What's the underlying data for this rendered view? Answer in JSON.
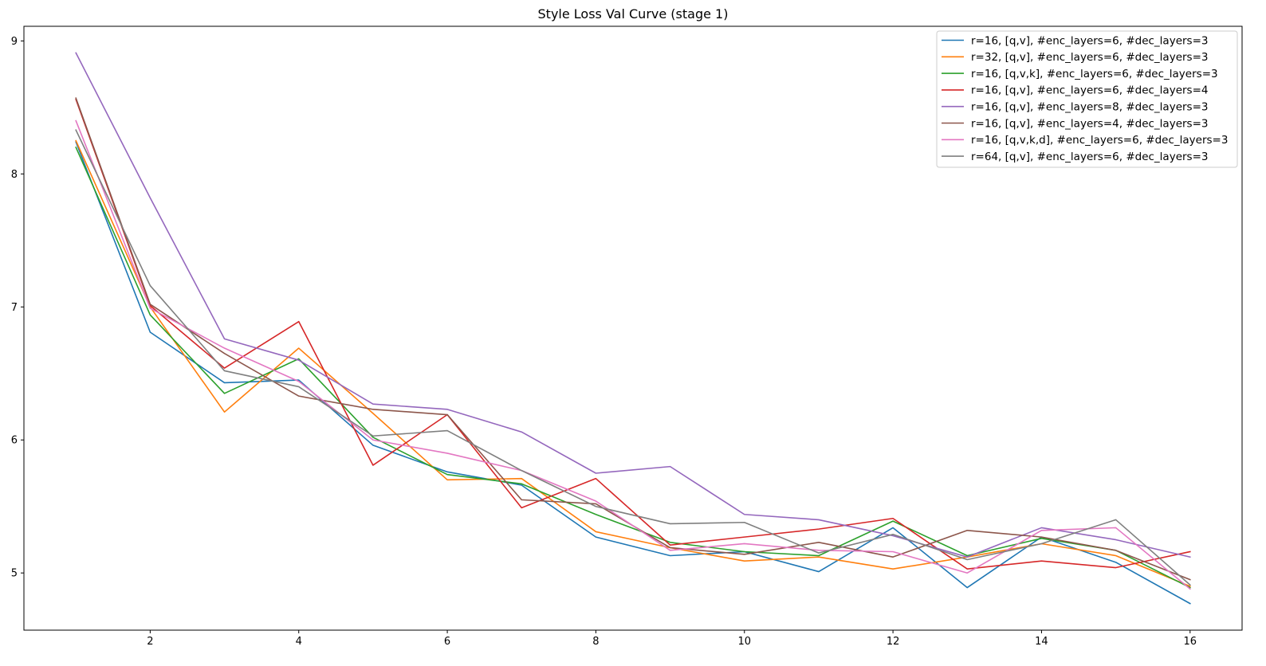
{
  "chart_data": {
    "type": "line",
    "title": "Style Loss Val Curve (stage 1)",
    "xlabel": "",
    "ylabel": "",
    "xlim": [
      0.3,
      16.7
    ],
    "ylim": [
      4.57,
      9.11
    ],
    "x_ticks": [
      2,
      4,
      6,
      8,
      10,
      12,
      14,
      16
    ],
    "y_ticks": [
      5,
      6,
      7,
      8,
      9
    ],
    "grid": false,
    "legend_position": "top-right",
    "x": [
      1,
      2,
      3,
      4,
      5,
      6,
      7,
      8,
      9,
      10,
      11,
      12,
      13,
      14,
      15,
      16
    ],
    "series": [
      {
        "name": "r=16, [q,v], #enc_layers=6, #dec_layers=3",
        "color": "#1f77b4",
        "values": [
          8.24,
          6.81,
          6.43,
          6.45,
          5.96,
          5.76,
          5.66,
          5.27,
          5.13,
          5.16,
          5.01,
          5.34,
          4.89,
          5.27,
          5.08,
          4.77
        ]
      },
      {
        "name": "r=32, [q,v], #enc_layers=6, #dec_layers=3",
        "color": "#ff7f0e",
        "values": [
          8.25,
          7.0,
          6.21,
          6.69,
          6.2,
          5.7,
          5.71,
          5.31,
          5.19,
          5.09,
          5.12,
          5.03,
          5.12,
          5.22,
          5.13,
          4.9
        ]
      },
      {
        "name": "r=16, [q,v,k], #enc_layers=6, #dec_layers=3",
        "color": "#2ca02c",
        "values": [
          8.2,
          6.94,
          6.35,
          6.61,
          6.02,
          5.74,
          5.67,
          5.44,
          5.23,
          5.16,
          5.13,
          5.39,
          5.13,
          5.26,
          5.17,
          4.89
        ]
      },
      {
        "name": "r=16, [q,v], #enc_layers=6, #dec_layers=4",
        "color": "#d62728",
        "values": [
          8.56,
          7.01,
          6.54,
          6.89,
          5.81,
          6.19,
          5.49,
          5.71,
          5.21,
          5.27,
          5.33,
          5.41,
          5.03,
          5.09,
          5.04,
          5.16
        ]
      },
      {
        "name": "r=16, [q,v], #enc_layers=8, #dec_layers=3",
        "color": "#9467bd",
        "values": [
          8.91,
          7.82,
          6.76,
          6.6,
          6.27,
          6.23,
          6.06,
          5.75,
          5.8,
          5.44,
          5.4,
          5.28,
          5.12,
          5.34,
          5.25,
          5.12
        ]
      },
      {
        "name": "r=16, [q,v], #enc_layers=4, #dec_layers=3",
        "color": "#8c564b",
        "values": [
          8.57,
          7.02,
          6.65,
          6.33,
          6.23,
          6.19,
          5.55,
          5.52,
          5.19,
          5.14,
          5.23,
          5.12,
          5.32,
          5.27,
          5.17,
          4.95
        ]
      },
      {
        "name": "r=16, [q,v,k,d], #enc_layers=6, #dec_layers=3",
        "color": "#e377c2",
        "values": [
          8.4,
          6.99,
          6.69,
          6.44,
          6.0,
          5.9,
          5.77,
          5.54,
          5.17,
          5.22,
          5.17,
          5.16,
          5.0,
          5.32,
          5.34,
          4.88
        ]
      },
      {
        "name": "r=64, [q,v], #enc_layers=6, #dec_layers=3",
        "color": "#7f7f7f",
        "values": [
          8.33,
          7.16,
          6.52,
          6.4,
          6.03,
          6.07,
          5.77,
          5.5,
          5.37,
          5.38,
          5.15,
          5.29,
          5.1,
          5.22,
          5.4,
          4.91
        ]
      }
    ]
  }
}
